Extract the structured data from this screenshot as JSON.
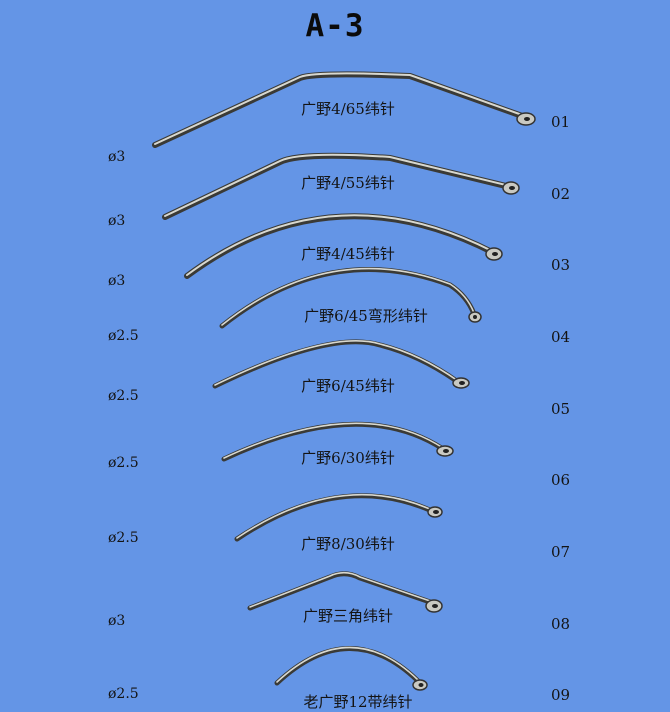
{
  "title": "A-3",
  "needles": [
    {
      "number": "01",
      "name": "广野4/65纬针",
      "diameter": "ø3"
    },
    {
      "number": "02",
      "name": "广野4/55纬针",
      "diameter": "ø3"
    },
    {
      "number": "03",
      "name": "广野4/45纬针",
      "diameter": "ø3"
    },
    {
      "number": "04",
      "name": "广野6/45弯形纬针",
      "diameter": "ø2.5"
    },
    {
      "number": "05",
      "name": "广野6/45纬针",
      "diameter": "ø2.5"
    },
    {
      "number": "06",
      "name": "广野6/30纬针",
      "diameter": "ø2.5"
    },
    {
      "number": "07",
      "name": "广野8/30纬针",
      "diameter": "ø2.5"
    },
    {
      "number": "08",
      "name": "广野三角纬针",
      "diameter": "ø3"
    },
    {
      "number": "09",
      "name": "老广野12带纬针",
      "diameter": "ø2.5"
    }
  ]
}
